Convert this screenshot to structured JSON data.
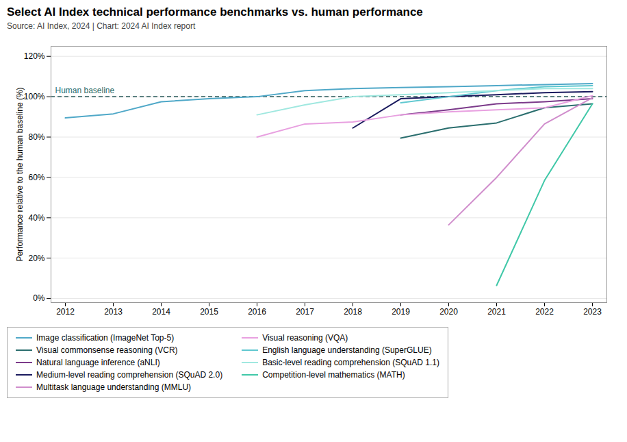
{
  "chart_data": {
    "type": "line",
    "title": "Select AI Index technical performance benchmarks vs. human performance",
    "subtitle": "Source: AI Index, 2024 | Chart: 2024 AI Index report",
    "y_label": "Performance relative to the human baseline (%)",
    "x": [
      2012,
      2013,
      2014,
      2015,
      2016,
      2017,
      2018,
      2019,
      2020,
      2021,
      2022,
      2023
    ],
    "series": [
      {
        "name": "Image classification (ImageNet Top-5)",
        "color": "#4fa8c8",
        "values": [
          0.895,
          0.915,
          0.975,
          0.99,
          1.0,
          1.03,
          1.04,
          1.045,
          1.05,
          1.055,
          1.06,
          1.065
        ]
      },
      {
        "name": "Visual commonsense reasoning (VCR)",
        "color": "#2a6e6e",
        "values": [
          null,
          null,
          null,
          null,
          null,
          null,
          null,
          0.795,
          0.845,
          0.87,
          0.945,
          0.965
        ]
      },
      {
        "name": "Natural language inference (aNLI)",
        "color": "#7b3a8a",
        "values": [
          null,
          null,
          null,
          null,
          null,
          null,
          null,
          0.91,
          0.935,
          0.965,
          0.975,
          0.99
        ]
      },
      {
        "name": "Medium-level reading comprehension (SQuAD 2.0)",
        "color": "#1a1a5e",
        "values": [
          null,
          null,
          null,
          null,
          null,
          null,
          0.845,
          0.99,
          1.0,
          1.01,
          1.02,
          1.025
        ]
      },
      {
        "name": "Multitask language understanding (MMLU)",
        "color": "#d08dcc",
        "values": [
          null,
          null,
          null,
          null,
          null,
          null,
          null,
          null,
          0.365,
          0.6,
          0.865,
          0.995
        ]
      },
      {
        "name": "Visual reasoning (VQA)",
        "color": "#e8a0e0",
        "values": [
          null,
          null,
          null,
          null,
          0.8,
          0.865,
          0.875,
          0.91,
          0.925,
          0.935,
          0.945,
          1.005
        ]
      },
      {
        "name": "English language understanding (SuperGLUE)",
        "color": "#60c8d0",
        "values": [
          null,
          null,
          null,
          null,
          null,
          null,
          null,
          0.97,
          1.0,
          1.03,
          1.05,
          1.055
        ]
      },
      {
        "name": "Basic-level reading comprehension (SQuAD 1.1)",
        "color": "#a0e8e0",
        "values": [
          null,
          null,
          null,
          null,
          0.91,
          0.96,
          1.0,
          1.01,
          1.02,
          1.03,
          1.04,
          1.04
        ]
      },
      {
        "name": "Competition-level mathematics (MATH)",
        "color": "#40c8a8",
        "values": [
          null,
          null,
          null,
          null,
          null,
          null,
          null,
          null,
          null,
          0.065,
          0.585,
          0.965
        ]
      }
    ],
    "annotations": [
      {
        "text": "Human baseline",
        "y": 1.0
      }
    ],
    "xlim": [
      2011.7,
      2023.3
    ],
    "xticks": [
      2012,
      2013,
      2014,
      2015,
      2016,
      2017,
      2018,
      2019,
      2020,
      2021,
      2022,
      2023
    ],
    "ylim": [
      -0.02,
      1.25
    ],
    "yticks": [
      {
        "value": 0.0,
        "label": "0%"
      },
      {
        "value": 0.2,
        "label": "20%"
      },
      {
        "value": 0.4,
        "label": "40%"
      },
      {
        "value": 0.6,
        "label": "60%"
      },
      {
        "value": 0.8,
        "label": "80%"
      },
      {
        "value": 1.0,
        "label": "100%"
      },
      {
        "value": 1.2,
        "label": "120%"
      }
    ],
    "grid": true,
    "legend": "bottom"
  }
}
